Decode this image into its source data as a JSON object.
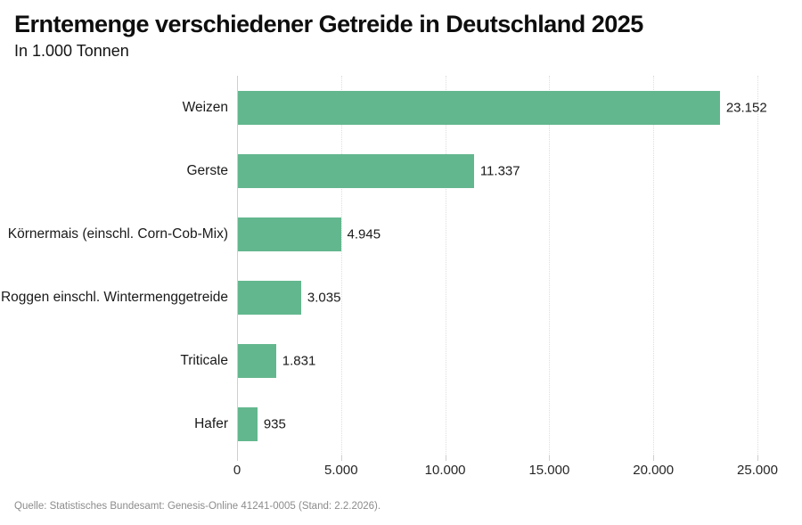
{
  "header": {
    "title": "Erntemenge verschiedener Getreide in Deutschland 2025",
    "subtitle": "In 1.000 Tonnen"
  },
  "footer": {
    "source": "Quelle: Statistisches Bundesamt: Genesis-Online 41241-0005 (Stand: 2.2.2026)."
  },
  "chart_data": {
    "type": "bar",
    "orientation": "horizontal",
    "title": "Erntemenge verschiedener Getreide in Deutschland 2025",
    "subtitle": "In 1.000 Tonnen",
    "unit": "1.000 Tonnen",
    "categories": [
      "Weizen",
      "Gerste",
      "Körnermais (einschl. Corn-Cob-Mix)",
      "Roggen einschl. Wintermenggetreide",
      "Triticale",
      "Hafer"
    ],
    "values": [
      23152,
      11337,
      4945,
      3035,
      1831,
      935
    ],
    "value_labels": [
      "23.152",
      "11.337",
      "4.945",
      "3.035",
      "1.831",
      "935"
    ],
    "xlim": [
      0,
      25000
    ],
    "x_ticks": [
      0,
      5000,
      10000,
      15000,
      20000,
      25000
    ],
    "x_tick_labels": [
      "0",
      "5.000",
      "10.000",
      "15.000",
      "20.000",
      "25.000"
    ],
    "bar_color": "#63b78e",
    "grid": "vertical-dotted",
    "legend": "none"
  }
}
